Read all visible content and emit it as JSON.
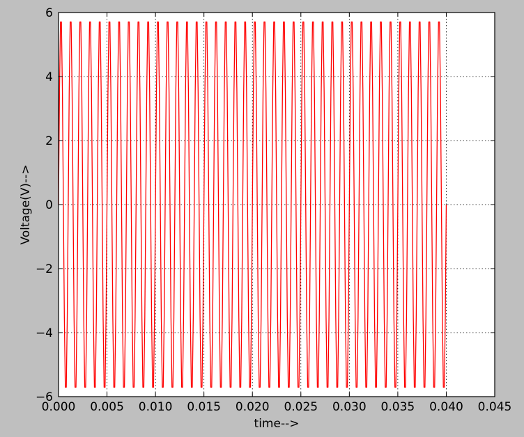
{
  "chart_data": {
    "type": "line",
    "xlabel": "time-->",
    "ylabel": "Voltage(V)-->",
    "xlim": [
      0.0,
      0.045
    ],
    "ylim": [
      -6,
      6
    ],
    "xticks": [
      0.0,
      0.005,
      0.01,
      0.015,
      0.02,
      0.025,
      0.03,
      0.035,
      0.04,
      0.045
    ],
    "xtick_labels": [
      "0.000",
      "0.005",
      "0.010",
      "0.015",
      "0.020",
      "0.025",
      "0.030",
      "0.035",
      "0.040",
      "0.045"
    ],
    "yticks": [
      -6,
      -4,
      -2,
      0,
      2,
      4,
      6
    ],
    "ytick_labels": [
      "−6",
      "−4",
      "−2",
      "0",
      "2",
      "4",
      "6"
    ],
    "grid": true,
    "grid_style": "dotted",
    "series": [
      {
        "color": "#ff0000",
        "function": "sine",
        "amplitude": 6,
        "frequency_hz": 1000,
        "x_start": 0.0,
        "x_end": 0.04,
        "sample_step": 0.0001
      }
    ]
  },
  "colors": {
    "figure_background": "#bfbfbf",
    "axes_background": "#ffffff",
    "line": "#ff0000",
    "grid": "#000000"
  }
}
